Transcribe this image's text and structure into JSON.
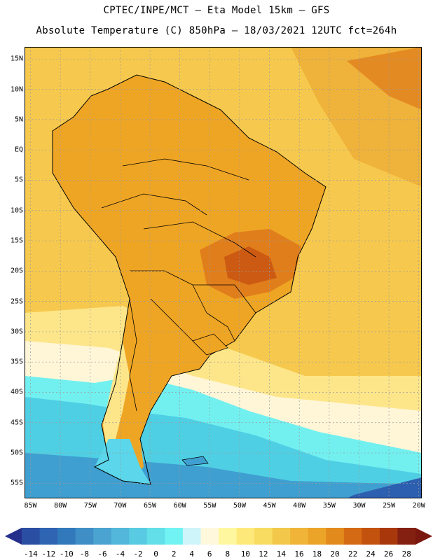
{
  "header": {
    "line1": "CPTEC/INPE/MCT –  Eta Model 15km – GFS",
    "line2": "Absolute Temperature (C) 850hPa – 18/03/2021 12UTC fct=264h"
  },
  "map": {
    "lat_labels": [
      "15N",
      "10N",
      "5N",
      "EQ",
      "5S",
      "10S",
      "15S",
      "20S",
      "25S",
      "30S",
      "35S",
      "40S",
      "45S",
      "50S",
      "55S"
    ],
    "lon_labels": [
      "85W",
      "80W",
      "75W",
      "70W",
      "65W",
      "60W",
      "55W",
      "50W",
      "45W",
      "40W",
      "35W",
      "30W",
      "25W",
      "20W"
    ],
    "extent": {
      "lon_min": -86,
      "lon_max": -19.5,
      "lat_min": -57.5,
      "lat_max": 17
    },
    "colors": {
      "ocean_warm": "#f6c24a",
      "land_warm": "#efa524",
      "hot": "#e07e1c",
      "cold": "#4cd6e8",
      "coldest": "#2d73c0"
    }
  },
  "colorbar": {
    "ticks": [
      "-14",
      "-12",
      "-10",
      "-8",
      "-6",
      "-4",
      "-2",
      "0",
      "2",
      "4",
      "6",
      "8",
      "10",
      "12",
      "14",
      "16",
      "18",
      "20",
      "22",
      "24",
      "26",
      "28"
    ],
    "colors": [
      "#2a4ea2",
      "#2e64b2",
      "#3279bc",
      "#3f8ec6",
      "#4aa3d0",
      "#52b7da",
      "#58cbe2",
      "#62dfe9",
      "#71f3f3",
      "#cdf5fa",
      "#fff8dc",
      "#fef7a0",
      "#fce97a",
      "#f8dc62",
      "#f3c84a",
      "#efb438",
      "#eca428",
      "#e38a1c",
      "#d56a14",
      "#c4520f",
      "#a8380c",
      "#842012"
    ],
    "left_arrow_color": "#252f8c",
    "right_arrow_color": "#7a1810"
  }
}
